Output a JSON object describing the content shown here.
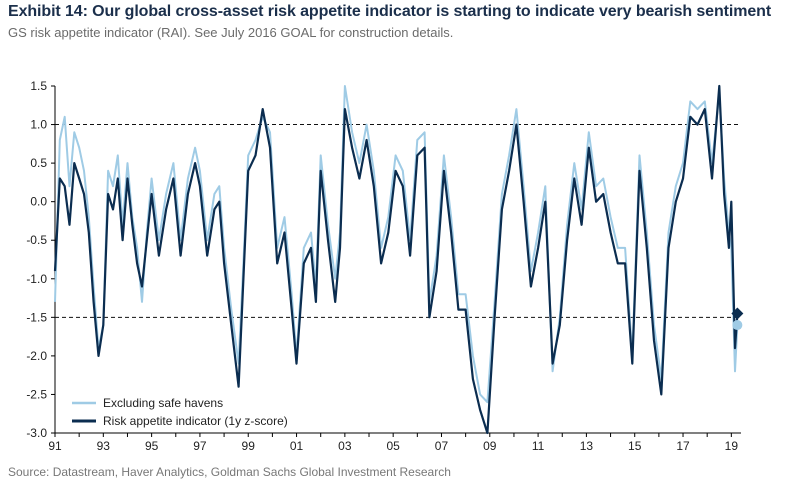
{
  "header": {
    "title": "Exhibit 14: Our global cross-asset risk appetite indicator is starting to indicate very bearish sentiment",
    "subtitle": "GS risk appetite indicator (RAI). See July 2016 GOAL for construction details."
  },
  "footer": {
    "source": "Source: Datastream, Haver Analytics, Goldman Sachs Global Investment Research"
  },
  "chart_data": {
    "type": "line",
    "title": "Exhibit 14: Our global cross-asset risk appetite indicator is starting to indicate very bearish sentiment",
    "subtitle": "GS risk appetite indicator (RAI). See July 2016 GOAL for construction details.",
    "xlabel": "",
    "ylabel": "",
    "xlim": [
      1991,
      2019.4
    ],
    "ylim": [
      -3.0,
      1.5
    ],
    "x_tick_labels": [
      "91",
      "93",
      "95",
      "97",
      "99",
      "01",
      "03",
      "05",
      "07",
      "09",
      "11",
      "13",
      "15",
      "17",
      "19"
    ],
    "y_tick_labels": [
      "1.5",
      "1.0",
      "0.5",
      "0.0",
      "-0.5",
      "-1.0",
      "-1.5",
      "-2.0",
      "-2.5",
      "-3.0"
    ],
    "y_ticks": [
      1.5,
      1.0,
      0.5,
      0.0,
      -0.5,
      -1.0,
      -1.5,
      -2.0,
      -2.5,
      -3.0
    ],
    "reference_lines": [
      1.0,
      -1.5
    ],
    "grid": false,
    "legend_position": "bottom-left",
    "series": [
      {
        "name": "Excluding safe havens",
        "color": "#9fcbe5",
        "x": [
          1991.0,
          1991.2,
          1991.4,
          1991.6,
          1991.8,
          1992.0,
          1992.2,
          1992.4,
          1992.6,
          1992.8,
          1993.0,
          1993.2,
          1993.4,
          1993.6,
          1993.8,
          1994.0,
          1994.2,
          1994.4,
          1994.6,
          1994.8,
          1995.0,
          1995.3,
          1995.6,
          1995.9,
          1996.2,
          1996.5,
          1996.8,
          1997.0,
          1997.3,
          1997.6,
          1997.8,
          1998.0,
          1998.3,
          1998.6,
          1998.8,
          1999.0,
          1999.3,
          1999.6,
          1999.9,
          2000.2,
          2000.5,
          2000.8,
          2001.0,
          2001.3,
          2001.6,
          2001.8,
          2002.0,
          2002.3,
          2002.6,
          2002.8,
          2003.0,
          2003.3,
          2003.6,
          2003.9,
          2004.2,
          2004.5,
          2004.8,
          2005.1,
          2005.4,
          2005.7,
          2006.0,
          2006.3,
          2006.5,
          2006.8,
          2007.1,
          2007.4,
          2007.7,
          2008.0,
          2008.3,
          2008.6,
          2008.9,
          2009.2,
          2009.5,
          2009.8,
          2010.1,
          2010.4,
          2010.7,
          2011.0,
          2011.3,
          2011.6,
          2011.9,
          2012.2,
          2012.5,
          2012.8,
          2013.1,
          2013.4,
          2013.7,
          2014.0,
          2014.3,
          2014.6,
          2014.9,
          2015.2,
          2015.5,
          2015.8,
          2016.1,
          2016.4,
          2016.7,
          2017.0,
          2017.3,
          2017.6,
          2017.9,
          2018.2,
          2018.5,
          2018.7,
          2018.9,
          2019.0,
          2019.15,
          2019.25
        ],
        "values": [
          -1.3,
          0.8,
          1.1,
          0.2,
          0.9,
          0.7,
          0.4,
          -0.2,
          -1.1,
          -1.9,
          -1.6,
          0.4,
          0.2,
          0.6,
          -0.3,
          0.5,
          -0.2,
          -0.6,
          -1.3,
          -0.4,
          0.3,
          -0.5,
          0.1,
          0.5,
          -0.5,
          0.3,
          0.7,
          0.4,
          -0.5,
          0.1,
          0.2,
          -0.6,
          -1.4,
          -2.1,
          -0.8,
          0.6,
          0.8,
          1.1,
          0.9,
          -0.6,
          -0.2,
          -1.2,
          -2.0,
          -0.6,
          -0.4,
          -1.1,
          0.6,
          -0.3,
          -1.0,
          -0.4,
          1.5,
          0.9,
          0.5,
          1.0,
          0.4,
          -0.6,
          -0.2,
          0.6,
          0.4,
          -0.5,
          0.8,
          0.9,
          -1.3,
          -0.7,
          0.6,
          -0.2,
          -1.2,
          -1.2,
          -2.0,
          -2.5,
          -2.6,
          -1.3,
          0.1,
          0.6,
          1.2,
          0.2,
          -0.9,
          -0.4,
          0.2,
          -2.2,
          -1.5,
          -0.3,
          0.5,
          -0.1,
          0.9,
          0.2,
          0.3,
          -0.2,
          -0.6,
          -0.6,
          -2.0,
          0.6,
          -0.4,
          -1.6,
          -2.3,
          -0.4,
          0.2,
          0.5,
          1.3,
          1.2,
          1.3,
          0.5,
          1.4,
          0.3,
          -0.4,
          -0.6,
          -2.2,
          -1.6
        ]
      },
      {
        "name": "Risk appetite indicator (1y z-score)",
        "color": "#0b2d50",
        "x": [
          1991.0,
          1991.2,
          1991.4,
          1991.6,
          1991.8,
          1992.0,
          1992.2,
          1992.4,
          1992.6,
          1992.8,
          1993.0,
          1993.2,
          1993.4,
          1993.6,
          1993.8,
          1994.0,
          1994.2,
          1994.4,
          1994.6,
          1994.8,
          1995.0,
          1995.3,
          1995.6,
          1995.9,
          1996.2,
          1996.5,
          1996.8,
          1997.0,
          1997.3,
          1997.6,
          1997.8,
          1998.0,
          1998.3,
          1998.6,
          1998.8,
          1999.0,
          1999.3,
          1999.6,
          1999.9,
          2000.2,
          2000.5,
          2000.8,
          2001.0,
          2001.3,
          2001.6,
          2001.8,
          2002.0,
          2002.3,
          2002.6,
          2002.8,
          2003.0,
          2003.3,
          2003.6,
          2003.9,
          2004.2,
          2004.5,
          2004.8,
          2005.1,
          2005.4,
          2005.7,
          2006.0,
          2006.3,
          2006.5,
          2006.8,
          2007.1,
          2007.4,
          2007.7,
          2008.0,
          2008.3,
          2008.6,
          2008.9,
          2009.2,
          2009.5,
          2009.8,
          2010.1,
          2010.4,
          2010.7,
          2011.0,
          2011.3,
          2011.6,
          2011.9,
          2012.2,
          2012.5,
          2012.8,
          2013.1,
          2013.4,
          2013.7,
          2014.0,
          2014.3,
          2014.6,
          2014.9,
          2015.2,
          2015.5,
          2015.8,
          2016.1,
          2016.4,
          2016.7,
          2017.0,
          2017.3,
          2017.6,
          2017.9,
          2018.2,
          2018.5,
          2018.7,
          2018.9,
          2019.0,
          2019.15,
          2019.25
        ],
        "values": [
          -0.9,
          0.3,
          0.2,
          -0.3,
          0.5,
          0.3,
          0.1,
          -0.4,
          -1.3,
          -2.0,
          -1.6,
          0.1,
          -0.1,
          0.3,
          -0.5,
          0.3,
          -0.3,
          -0.8,
          -1.1,
          -0.5,
          0.1,
          -0.7,
          -0.1,
          0.3,
          -0.7,
          0.1,
          0.5,
          0.2,
          -0.7,
          -0.1,
          0.0,
          -0.8,
          -1.6,
          -2.4,
          -1.0,
          0.4,
          0.6,
          1.2,
          0.7,
          -0.8,
          -0.4,
          -1.4,
          -2.1,
          -0.8,
          -0.6,
          -1.3,
          0.4,
          -0.5,
          -1.3,
          -0.6,
          1.2,
          0.7,
          0.3,
          0.8,
          0.2,
          -0.8,
          -0.4,
          0.4,
          0.2,
          -0.7,
          0.6,
          0.7,
          -1.5,
          -0.9,
          0.4,
          -0.4,
          -1.4,
          -1.4,
          -2.3,
          -2.7,
          -3.0,
          -1.5,
          -0.1,
          0.4,
          1.0,
          0.0,
          -1.1,
          -0.6,
          0.0,
          -2.1,
          -1.6,
          -0.5,
          0.3,
          -0.3,
          0.7,
          0.0,
          0.1,
          -0.4,
          -0.8,
          -0.8,
          -2.1,
          0.4,
          -0.6,
          -1.8,
          -2.5,
          -0.6,
          0.0,
          0.3,
          1.1,
          1.0,
          1.2,
          0.3,
          1.5,
          0.1,
          -0.6,
          0.0,
          -1.9,
          -1.45
        ]
      }
    ],
    "end_markers": [
      {
        "series": "Excluding safe havens",
        "x": 2019.25,
        "value": -1.6,
        "shape": "circle"
      },
      {
        "series": "Risk appetite indicator (1y z-score)",
        "x": 2019.25,
        "value": -1.45,
        "shape": "diamond"
      }
    ]
  }
}
